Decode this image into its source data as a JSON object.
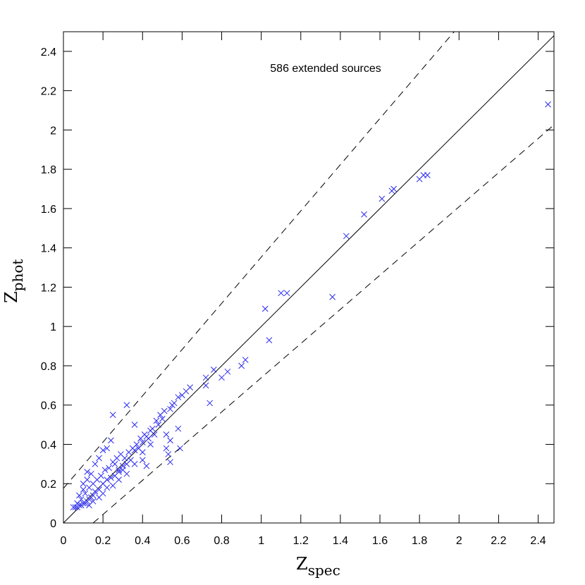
{
  "chart_data": {
    "type": "scatter",
    "annotation": "586 extended sources",
    "xlabel": {
      "main": "Z",
      "sub": "spec"
    },
    "ylabel": {
      "main": "Z",
      "sub": "phot"
    },
    "xlim": [
      0,
      2.48
    ],
    "ylim": [
      0,
      2.5
    ],
    "xticks": [
      0,
      0.2,
      0.4,
      0.6,
      0.8,
      1,
      1.2,
      1.4,
      1.6,
      1.8,
      2,
      2.2,
      2.4
    ],
    "yticks": [
      0,
      0.2,
      0.4,
      0.6,
      0.8,
      1,
      1.2,
      1.4,
      1.6,
      1.8,
      2,
      2.2,
      2.4
    ],
    "reference_lines": [
      {
        "style": "solid",
        "x": [
          0,
          2.48
        ],
        "y": [
          0,
          2.48
        ]
      },
      {
        "style": "dashed",
        "x": [
          0,
          0.5,
          1,
          1.5,
          2.0
        ],
        "y": [
          0.176,
          0.765,
          1.353,
          1.941,
          2.529
        ]
      },
      {
        "style": "dashed",
        "x": [
          0.15,
          0.5,
          1,
          1.5,
          2.0,
          2.48
        ],
        "y": [
          0,
          0.304,
          0.739,
          1.174,
          1.609,
          2.026
        ]
      }
    ],
    "series": [
      {
        "color": "#2b2bef",
        "x": [
          2.45,
          1.84,
          1.82,
          1.8,
          1.67,
          1.66,
          1.61,
          1.52,
          1.43,
          1.36,
          1.13,
          1.1,
          1.02,
          1.04,
          0.92,
          0.9,
          0.83,
          0.8,
          0.76,
          0.74,
          0.72,
          0.72,
          0.64,
          0.62,
          0.6,
          0.58,
          0.59,
          0.56,
          0.55,
          0.54,
          0.58,
          0.54,
          0.53,
          0.52,
          0.5,
          0.48,
          0.46,
          0.44,
          0.42,
          0.4,
          0.38,
          0.36,
          0.36,
          0.32,
          0.25,
          0.24,
          0.34,
          0.36,
          0.4,
          0.42,
          0.26,
          0.28,
          0.3,
          0.32,
          0.22,
          0.2,
          0.18,
          0.12,
          0.14,
          0.1,
          0.22,
          0.24,
          0.26,
          0.28,
          0.3,
          0.2,
          0.18,
          0.16,
          0.15,
          0.14,
          0.13,
          0.12,
          0.11,
          0.1,
          0.09,
          0.08,
          0.07,
          0.06,
          0.05,
          0.07,
          0.09,
          0.11,
          0.13,
          0.15,
          0.17,
          0.19,
          0.21,
          0.23,
          0.25,
          0.27,
          0.29,
          0.31,
          0.33,
          0.35,
          0.37,
          0.39,
          0.41,
          0.43,
          0.45,
          0.47,
          0.49,
          0.51,
          0.2,
          0.18,
          0.25,
          0.28,
          0.32,
          0.4,
          0.44,
          0.52,
          0.54,
          0.16,
          0.12,
          0.1,
          0.08,
          0.22,
          0.15,
          0.13
        ],
        "y": [
          2.13,
          1.77,
          1.77,
          1.75,
          1.7,
          1.69,
          1.65,
          1.57,
          1.46,
          1.15,
          1.17,
          1.17,
          1.09,
          0.93,
          0.83,
          0.8,
          0.77,
          0.74,
          0.78,
          0.61,
          0.7,
          0.74,
          0.69,
          0.67,
          0.65,
          0.64,
          0.38,
          0.61,
          0.6,
          0.58,
          0.48,
          0.31,
          0.35,
          0.38,
          0.53,
          0.5,
          0.45,
          0.47,
          0.44,
          0.41,
          0.38,
          0.37,
          0.5,
          0.6,
          0.55,
          0.42,
          0.32,
          0.3,
          0.32,
          0.29,
          0.3,
          0.27,
          0.29,
          0.3,
          0.38,
          0.37,
          0.33,
          0.26,
          0.25,
          0.2,
          0.22,
          0.23,
          0.24,
          0.26,
          0.27,
          0.2,
          0.17,
          0.16,
          0.14,
          0.13,
          0.12,
          0.11,
          0.1,
          0.1,
          0.09,
          0.09,
          0.08,
          0.08,
          0.08,
          0.1,
          0.12,
          0.15,
          0.18,
          0.2,
          0.22,
          0.24,
          0.27,
          0.28,
          0.31,
          0.33,
          0.35,
          0.33,
          0.36,
          0.38,
          0.4,
          0.43,
          0.45,
          0.43,
          0.48,
          0.52,
          0.55,
          0.57,
          0.15,
          0.13,
          0.19,
          0.22,
          0.25,
          0.36,
          0.4,
          0.45,
          0.42,
          0.3,
          0.22,
          0.17,
          0.14,
          0.18,
          0.11,
          0.09
        ]
      }
    ]
  }
}
